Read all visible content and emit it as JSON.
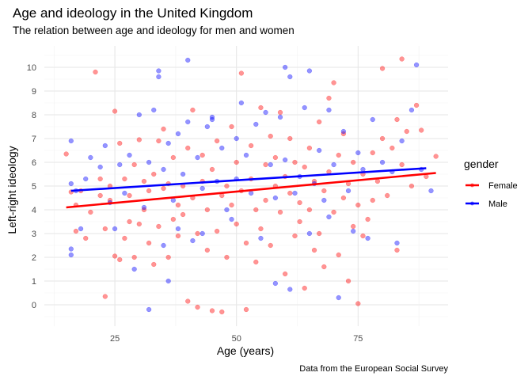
{
  "chart_data": {
    "type": "scatter",
    "title": "Age and ideology in the United Kingdom",
    "subtitle": "The relation between age and ideology for men and women",
    "xlabel": "Age (years)",
    "ylabel": "Left-right ideology",
    "caption": "Data from the European Social Survey",
    "xlim": [
      10.5,
      93.5
    ],
    "ylim": [
      -0.9,
      10.9
    ],
    "x_ticks": [
      25,
      50,
      75
    ],
    "x_tick_labels": [
      "25",
      "50",
      "75"
    ],
    "y_ticks": [
      0,
      1,
      2,
      3,
      4,
      5,
      6,
      7,
      8,
      9,
      10
    ],
    "y_tick_labels": [
      "0",
      "1",
      "2",
      "3",
      "4",
      "5",
      "6",
      "7",
      "8",
      "9",
      "10"
    ],
    "grid": true,
    "legend": {
      "title": "gender",
      "position": "right"
    },
    "series": [
      {
        "name": "Female",
        "color": "#ff0000",
        "trend": {
          "x": [
            15,
            91
          ],
          "y": [
            4.1,
            5.55
          ]
        },
        "points": [
          [
            15,
            6.35
          ],
          [
            16,
            4.75
          ],
          [
            17,
            3.1
          ],
          [
            17,
            4.2
          ],
          [
            18,
            4.8
          ],
          [
            19,
            2.8
          ],
          [
            20,
            3.9
          ],
          [
            21,
            9.8
          ],
          [
            22,
            4.6
          ],
          [
            22,
            5.3
          ],
          [
            23,
            0.35
          ],
          [
            23,
            3.2
          ],
          [
            24,
            5.0
          ],
          [
            24,
            4.4
          ],
          [
            25,
            2.05
          ],
          [
            25,
            8.15
          ],
          [
            26,
            6.8
          ],
          [
            26,
            1.9
          ],
          [
            27,
            2.8
          ],
          [
            27,
            5.3
          ],
          [
            28,
            4.6
          ],
          [
            28,
            3.5
          ],
          [
            29,
            2.0
          ],
          [
            29,
            5.9
          ],
          [
            30,
            6.95
          ],
          [
            30,
            3.4
          ],
          [
            31,
            4.0
          ],
          [
            31,
            5.2
          ],
          [
            32,
            2.6
          ],
          [
            32,
            4.8
          ],
          [
            33,
            1.7
          ],
          [
            33,
            5.5
          ],
          [
            34,
            6.9
          ],
          [
            34,
            3.3
          ],
          [
            35,
            4.9
          ],
          [
            35,
            7.4
          ],
          [
            36,
            2.0
          ],
          [
            36,
            5.1
          ],
          [
            37,
            3.6
          ],
          [
            37,
            6.2
          ],
          [
            38,
            4.2
          ],
          [
            38,
            2.9
          ],
          [
            39,
            5.0
          ],
          [
            39,
            3.8
          ],
          [
            40,
            0.15
          ],
          [
            40,
            6.6
          ],
          [
            41,
            4.5
          ],
          [
            41,
            8.2
          ],
          [
            42,
            3.0
          ],
          [
            42,
            -0.1
          ],
          [
            43,
            5.2
          ],
          [
            43,
            6.3
          ],
          [
            44,
            4.0
          ],
          [
            44,
            2.3
          ],
          [
            45,
            5.7
          ],
          [
            45,
            -0.25
          ],
          [
            46,
            3.1
          ],
          [
            46,
            6.9
          ],
          [
            47,
            4.6
          ],
          [
            47,
            -0.3
          ],
          [
            48,
            5.0
          ],
          [
            48,
            2.0
          ],
          [
            49,
            4.2
          ],
          [
            49,
            7.5
          ],
          [
            50,
            3.4
          ],
          [
            50,
            6.0
          ],
          [
            51,
            9.75
          ],
          [
            51,
            4.8
          ],
          [
            52,
            -0.2
          ],
          [
            52,
            2.6
          ],
          [
            53,
            5.3
          ],
          [
            53,
            6.7
          ],
          [
            54,
            1.8
          ],
          [
            54,
            4.0
          ],
          [
            55,
            8.3
          ],
          [
            55,
            3.2
          ],
          [
            56,
            5.9
          ],
          [
            56,
            4.4
          ],
          [
            57,
            7.1
          ],
          [
            57,
            2.5
          ],
          [
            58,
            5.0
          ],
          [
            58,
            6.2
          ],
          [
            59,
            3.9
          ],
          [
            59,
            8.1
          ],
          [
            60,
            1.3
          ],
          [
            60,
            5.4
          ],
          [
            61,
            4.7
          ],
          [
            61,
            7.0
          ],
          [
            62,
            2.9
          ],
          [
            62,
            6.0
          ],
          [
            63,
            4.3
          ],
          [
            63,
            3.5
          ],
          [
            64,
            5.8
          ],
          [
            64,
            0.7
          ],
          [
            65,
            4.0
          ],
          [
            65,
            6.6
          ],
          [
            66,
            2.3
          ],
          [
            66,
            5.2
          ],
          [
            67,
            3.0
          ],
          [
            67,
            7.7
          ],
          [
            68,
            4.8
          ],
          [
            68,
            1.6
          ],
          [
            69,
            5.6
          ],
          [
            69,
            8.7
          ],
          [
            70,
            9.35
          ],
          [
            70,
            3.9
          ],
          [
            71,
            6.3
          ],
          [
            71,
            2.1
          ],
          [
            72,
            4.5
          ],
          [
            72,
            7.2
          ],
          [
            73,
            5.1
          ],
          [
            73,
            1.0
          ],
          [
            74,
            3.3
          ],
          [
            74,
            6.0
          ],
          [
            75,
            4.2
          ],
          [
            75,
            0.05
          ],
          [
            76,
            5.5
          ],
          [
            76,
            2.9
          ],
          [
            77,
            3.6
          ],
          [
            78,
            6.4
          ],
          [
            78,
            4.4
          ],
          [
            79,
            5.2
          ],
          [
            80,
            9.95
          ],
          [
            80,
            7.0
          ],
          [
            81,
            4.6
          ],
          [
            82,
            6.6
          ],
          [
            83,
            7.8
          ],
          [
            83,
            2.3
          ],
          [
            84,
            10.35
          ],
          [
            84,
            5.9
          ],
          [
            85,
            7.3
          ],
          [
            86,
            5.0
          ],
          [
            87,
            8.4
          ],
          [
            88,
            7.35
          ],
          [
            89,
            5.4
          ],
          [
            91,
            6.25
          ]
        ]
      },
      {
        "name": "Male",
        "color": "#0000ff",
        "trend": {
          "x": [
            16,
            89
          ],
          "y": [
            4.8,
            5.75
          ]
        },
        "points": [
          [
            16,
            2.1
          ],
          [
            16,
            2.35
          ],
          [
            16,
            5.1
          ],
          [
            16,
            6.9
          ],
          [
            17,
            4.8
          ],
          [
            18,
            3.2
          ],
          [
            19,
            5.3
          ],
          [
            20,
            6.2
          ],
          [
            22,
            5.8
          ],
          [
            23,
            6.7
          ],
          [
            24,
            4.3
          ],
          [
            25,
            3.2
          ],
          [
            26,
            5.9
          ],
          [
            27,
            4.7
          ],
          [
            28,
            6.3
          ],
          [
            29,
            1.5
          ],
          [
            30,
            8.0
          ],
          [
            31,
            4.1
          ],
          [
            32,
            -0.2
          ],
          [
            32,
            6.0
          ],
          [
            33,
            8.2
          ],
          [
            34,
            9.85
          ],
          [
            34,
            9.6
          ],
          [
            35,
            5.7
          ],
          [
            35,
            2.5
          ],
          [
            36,
            1.0
          ],
          [
            36,
            6.8
          ],
          [
            37,
            4.4
          ],
          [
            38,
            7.2
          ],
          [
            38,
            3.2
          ],
          [
            39,
            5.5
          ],
          [
            40,
            10.3
          ],
          [
            40,
            7.7
          ],
          [
            41,
            2.7
          ],
          [
            42,
            6.2
          ],
          [
            43,
            4.9
          ],
          [
            43,
            3.0
          ],
          [
            44,
            7.5
          ],
          [
            45,
            7.9
          ],
          [
            45,
            7.8
          ],
          [
            46,
            5.2
          ],
          [
            47,
            6.6
          ],
          [
            48,
            4.0
          ],
          [
            49,
            3.6
          ],
          [
            50,
            7.0
          ],
          [
            50,
            5.3
          ],
          [
            51,
            8.5
          ],
          [
            52,
            6.3
          ],
          [
            53,
            4.7
          ],
          [
            54,
            7.6
          ],
          [
            55,
            2.8
          ],
          [
            56,
            8.1
          ],
          [
            57,
            5.9
          ],
          [
            58,
            0.9
          ],
          [
            58,
            4.5
          ],
          [
            59,
            7.9
          ],
          [
            60,
            10.0
          ],
          [
            60,
            6.1
          ],
          [
            61,
            9.6
          ],
          [
            61,
            0.65
          ],
          [
            62,
            4.7
          ],
          [
            63,
            5.4
          ],
          [
            64,
            8.3
          ],
          [
            65,
            9.85
          ],
          [
            65,
            3.0
          ],
          [
            66,
            5.1
          ],
          [
            67,
            6.5
          ],
          [
            68,
            4.4
          ],
          [
            69,
            8.2
          ],
          [
            69,
            3.7
          ],
          [
            70,
            5.9
          ],
          [
            71,
            0.3
          ],
          [
            72,
            7.3
          ],
          [
            73,
            4.8
          ],
          [
            74,
            3.1
          ],
          [
            75,
            6.4
          ],
          [
            76,
            5.7
          ],
          [
            77,
            2.8
          ],
          [
            78,
            7.8
          ],
          [
            80,
            6.0
          ],
          [
            82,
            5.6
          ],
          [
            83,
            2.6
          ],
          [
            84,
            6.9
          ],
          [
            86,
            8.2
          ],
          [
            87,
            10.1
          ],
          [
            88,
            5.7
          ],
          [
            90,
            4.8
          ]
        ]
      }
    ]
  }
}
